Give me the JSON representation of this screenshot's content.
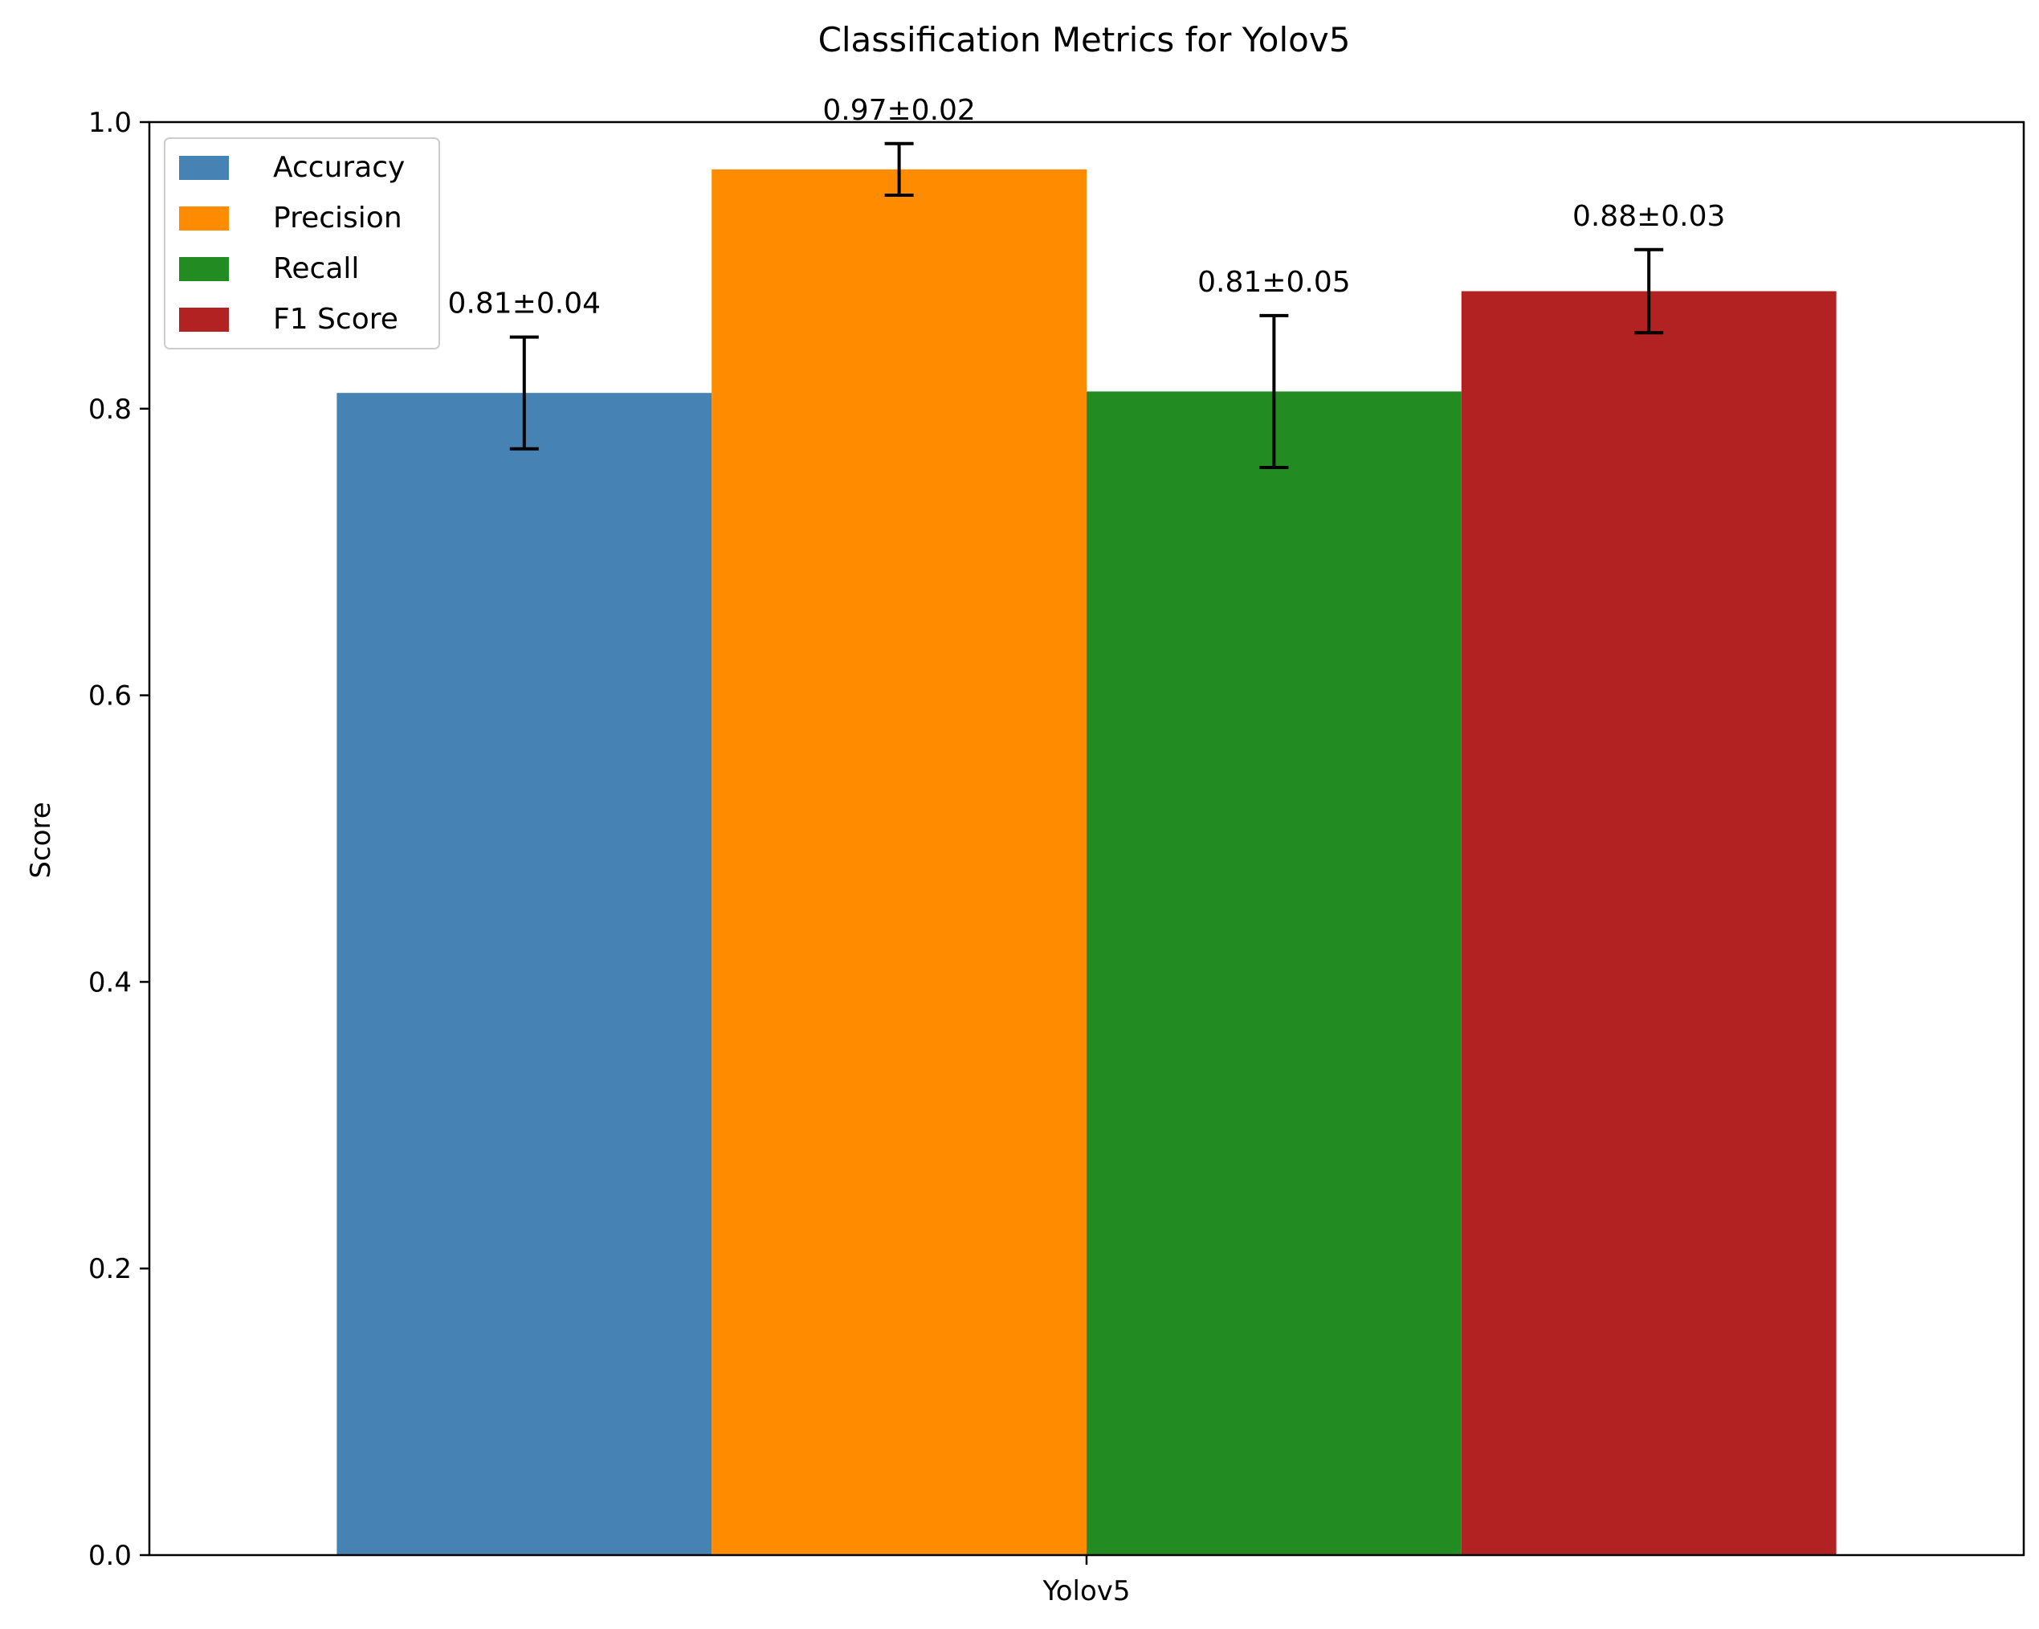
{
  "chart_data": {
    "type": "bar",
    "title": "Classification Metrics for Yolov5",
    "xlabel": "",
    "ylabel": "Score",
    "categories": [
      "Yolov5"
    ],
    "ylim": [
      0,
      1.0
    ],
    "yticks": [
      "0.0",
      "0.2",
      "0.4",
      "0.6",
      "0.8",
      "1.0"
    ],
    "grid": false,
    "legend_position": "top-left",
    "series": [
      {
        "name": "Accuracy",
        "values": [
          0.811
        ],
        "error": [
          0.039
        ],
        "label": "0.81±0.04",
        "color": "#4682B4"
      },
      {
        "name": "Precision",
        "values": [
          0.967
        ],
        "error": [
          0.018
        ],
        "label": "0.97±0.02",
        "color": "#FF8C00"
      },
      {
        "name": "Recall",
        "values": [
          0.812
        ],
        "error": [
          0.053
        ],
        "label": "0.81±0.05",
        "color": "#228B22"
      },
      {
        "name": "F1 Score",
        "values": [
          0.882
        ],
        "error": [
          0.029
        ],
        "label": "0.88±0.03",
        "color": "#B22222"
      }
    ]
  }
}
